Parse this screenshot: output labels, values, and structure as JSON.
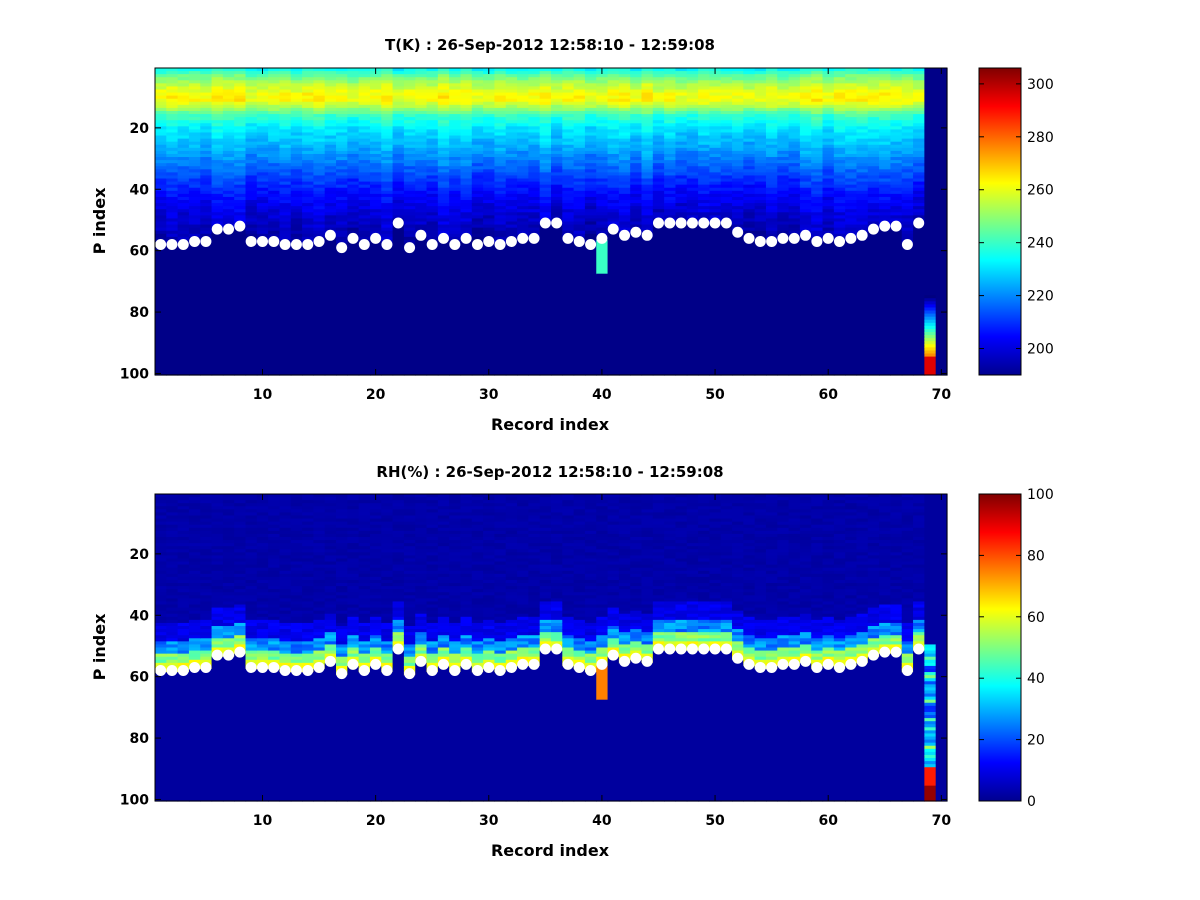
{
  "chart_data": [
    {
      "type": "heatmap",
      "title": "T(K) : 26-Sep-2012 12:58:10 - 12:59:08",
      "xlabel": "Record index",
      "ylabel": "P index",
      "xlim": [
        1,
        70
      ],
      "ylim": [
        1,
        100
      ],
      "y_reversed": true,
      "xticks": [
        10,
        20,
        30,
        40,
        50,
        60,
        70
      ],
      "yticks": [
        20,
        40,
        60,
        80,
        100
      ],
      "colorbar": {
        "min": 190,
        "max": 306,
        "ticks": [
          200,
          220,
          240,
          260,
          280,
          300
        ]
      },
      "surface_markers_p": [
        58,
        58,
        58,
        57,
        57,
        53,
        53,
        52,
        57,
        57,
        57,
        58,
        58,
        58,
        57,
        55,
        59,
        56,
        58,
        56,
        58,
        51,
        59,
        55,
        58,
        56,
        58,
        56,
        58,
        57,
        58,
        57,
        56,
        56,
        51,
        51,
        56,
        57,
        58,
        56,
        53,
        55,
        54,
        55,
        51,
        51,
        51,
        51,
        51,
        51,
        51,
        54,
        56,
        57,
        57,
        56,
        56,
        55,
        57,
        56,
        57,
        56,
        55,
        53,
        52,
        52,
        58,
        51
      ]
    },
    {
      "type": "heatmap",
      "title": "RH(%) : 26-Sep-2012 12:58:10 - 12:59:08",
      "xlabel": "Record index",
      "ylabel": "P index",
      "xlim": [
        1,
        70
      ],
      "ylim": [
        1,
        100
      ],
      "y_reversed": true,
      "xticks": [
        10,
        20,
        30,
        40,
        50,
        60,
        70
      ],
      "yticks": [
        20,
        40,
        60,
        80,
        100
      ],
      "colorbar": {
        "min": 0,
        "max": 100,
        "ticks": [
          0,
          20,
          40,
          60,
          80,
          100
        ]
      },
      "surface_markers_p": [
        58,
        58,
        58,
        57,
        57,
        53,
        53,
        52,
        57,
        57,
        57,
        58,
        58,
        58,
        57,
        55,
        59,
        56,
        58,
        56,
        58,
        51,
        59,
        55,
        58,
        56,
        58,
        56,
        58,
        57,
        58,
        57,
        56,
        56,
        51,
        51,
        56,
        57,
        58,
        56,
        53,
        55,
        54,
        55,
        51,
        51,
        51,
        51,
        51,
        51,
        51,
        54,
        56,
        57,
        57,
        56,
        56,
        55,
        57,
        56,
        57,
        56,
        55,
        53,
        52,
        52,
        58,
        51
      ]
    }
  ]
}
